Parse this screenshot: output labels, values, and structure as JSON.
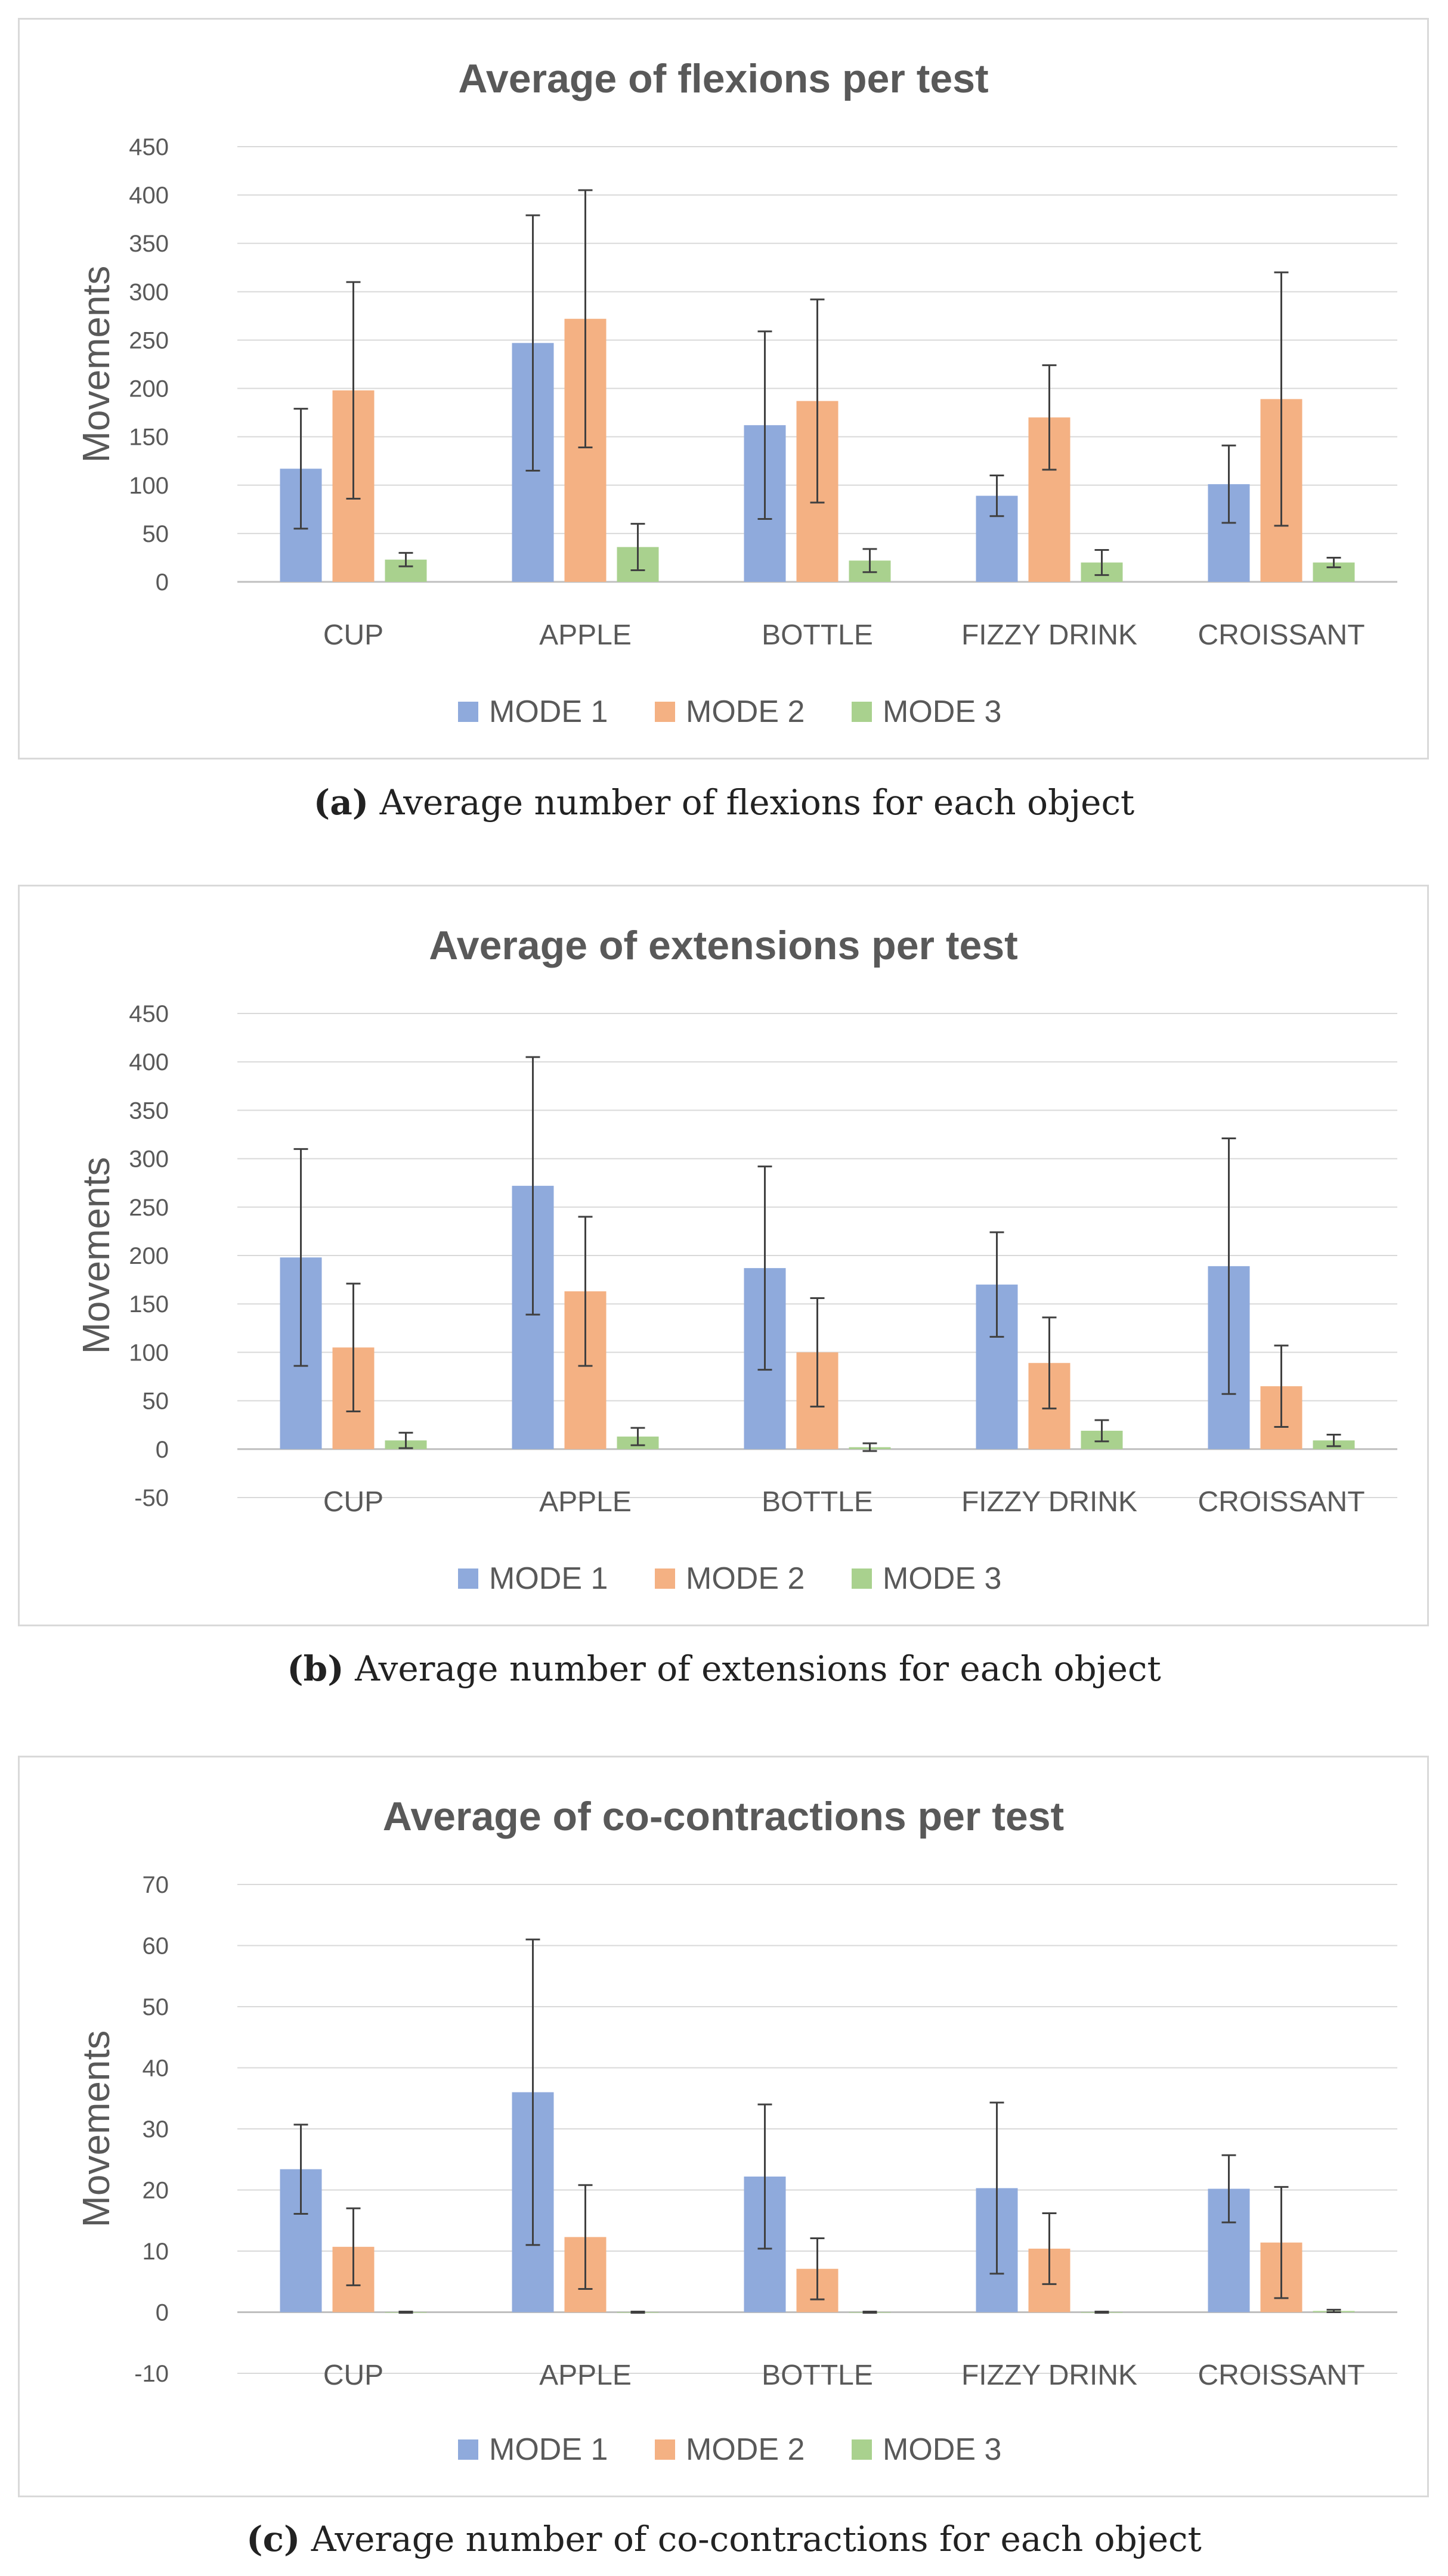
{
  "chart_data": [
    {
      "type": "bar",
      "title": "Average of flexions per test",
      "ylabel": "Movements",
      "xlabel": "",
      "ylim": [
        0,
        450
      ],
      "ytick_step": 50,
      "categories": [
        "CUP",
        "APPLE",
        "BOTTLE",
        "FIZZY DRINK",
        "CROISSANT"
      ],
      "series": [
        {
          "name": "MODE 1",
          "color": "#8faadc",
          "values": [
            117,
            247,
            162,
            89,
            101
          ],
          "err": [
            62,
            132,
            97,
            21,
            40
          ]
        },
        {
          "name": "MODE 2",
          "color": "#f4b183",
          "values": [
            198,
            272,
            187,
            170,
            189
          ],
          "err": [
            112,
            133,
            105,
            54,
            131
          ]
        },
        {
          "name": "MODE 3",
          "color": "#a9d18e",
          "values": [
            23,
            36,
            22,
            20,
            20
          ],
          "err": [
            7,
            24,
            12,
            13,
            5
          ]
        }
      ],
      "legend": "bottom",
      "grid": true,
      "caption_label": "(a)",
      "caption_text": "Average number of flexions for each object"
    },
    {
      "type": "bar",
      "title": "Average of extensions per test",
      "ylabel": "Movements",
      "xlabel": "",
      "ylim": [
        -50,
        450
      ],
      "ytick_step": 50,
      "categories": [
        "CUP",
        "APPLE",
        "BOTTLE",
        "FIZZY DRINK",
        "CROISSANT"
      ],
      "series": [
        {
          "name": "MODE 1",
          "color": "#8faadc",
          "values": [
            198,
            272,
            187,
            170,
            189
          ],
          "err": [
            112,
            133,
            105,
            54,
            132
          ]
        },
        {
          "name": "MODE 2",
          "color": "#f4b183",
          "values": [
            105,
            163,
            100,
            89,
            65
          ],
          "err": [
            66,
            77,
            56,
            47,
            42
          ]
        },
        {
          "name": "MODE 3",
          "color": "#a9d18e",
          "values": [
            9,
            13,
            2,
            19,
            9
          ],
          "err": [
            8,
            9,
            4,
            11,
            6
          ]
        }
      ],
      "legend": "bottom",
      "grid": true,
      "caption_label": "(b)",
      "caption_text": "Average number of extensions for each object"
    },
    {
      "type": "bar",
      "title": "Average of co-contractions per test",
      "ylabel": "Movements",
      "xlabel": "",
      "ylim": [
        -10,
        70
      ],
      "ytick_step": 10,
      "categories": [
        "CUP",
        "APPLE",
        "BOTTLE",
        "FIZZY DRINK",
        "CROISSANT"
      ],
      "series": [
        {
          "name": "MODE 1",
          "color": "#8faadc",
          "values": [
            23.4,
            36,
            22.2,
            20.3,
            20.2
          ],
          "err": [
            7.3,
            25,
            11.8,
            14,
            5.5
          ]
        },
        {
          "name": "MODE 2",
          "color": "#f4b183",
          "values": [
            10.7,
            12.3,
            7.1,
            10.4,
            11.4
          ],
          "err": [
            6.3,
            8.5,
            5,
            5.8,
            9.1
          ]
        },
        {
          "name": "MODE 3",
          "color": "#a9d18e",
          "values": [
            0,
            0,
            0,
            0,
            0.2
          ],
          "err": [
            0.1,
            0.1,
            0.1,
            0.1,
            0.2
          ]
        }
      ],
      "legend": "bottom",
      "grid": true,
      "caption_label": "(c)",
      "caption_text": "Average number of co-contractions for each object"
    }
  ]
}
